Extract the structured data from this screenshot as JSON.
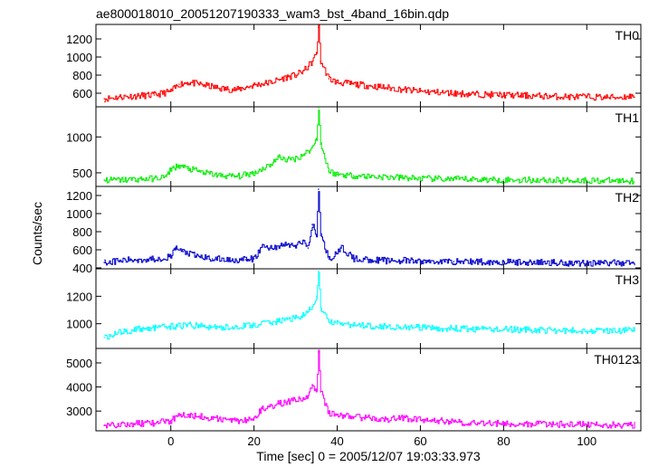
{
  "title": "ae800018010_20051207190333_wam3_bst_4band_16bin.qdp",
  "xlabel": "Time [sec] 0 = 2005/12/07 19:03:33.973",
  "ylabel": "Counts/sec",
  "chart_data": [
    {
      "type": "line",
      "name": "TH0",
      "color": "#ff0000",
      "ylim": [
        450,
        1360
      ],
      "yticks": [
        600,
        800,
        1000,
        1200
      ],
      "yticklabels": [
        "600",
        "800",
        "1000",
        "1200"
      ],
      "x": [
        -16,
        -12,
        -8,
        -4,
        0,
        2,
        4,
        8,
        12,
        16,
        20,
        24,
        28,
        30,
        32,
        34,
        35,
        35.5,
        36,
        38,
        40,
        44,
        48,
        52,
        56,
        60,
        64,
        68,
        72,
        76,
        80,
        84,
        88,
        92,
        96,
        100,
        104,
        108,
        111
      ],
      "values": [
        540,
        560,
        570,
        580,
        620,
        700,
        720,
        690,
        650,
        640,
        690,
        720,
        780,
        800,
        850,
        950,
        1050,
        1330,
        950,
        760,
        720,
        700,
        680,
        660,
        640,
        620,
        610,
        600,
        590,
        585,
        580,
        575,
        570,
        565,
        560,
        560,
        555,
        555,
        570
      ]
    },
    {
      "type": "line",
      "name": "TH1",
      "color": "#00ee00",
      "ylim": [
        310,
        1420
      ],
      "yticks": [
        500,
        1000
      ],
      "yticklabels": [
        "500",
        "1000"
      ],
      "x": [
        -16,
        -12,
        -8,
        -4,
        -1,
        0,
        2,
        4,
        8,
        12,
        16,
        20,
        24,
        26,
        28,
        30,
        32,
        34,
        35,
        35.5,
        36,
        38,
        40,
        44,
        48,
        52,
        56,
        60,
        64,
        68,
        72,
        76,
        80,
        84,
        88,
        92,
        96,
        100,
        104,
        108,
        111
      ],
      "values": [
        400,
        400,
        410,
        420,
        450,
        560,
        600,
        560,
        500,
        460,
        450,
        500,
        620,
        720,
        680,
        700,
        760,
        850,
        980,
        1410,
        900,
        520,
        480,
        460,
        450,
        440,
        430,
        420,
        415,
        410,
        410,
        405,
        400,
        400,
        400,
        395,
        395,
        395,
        390,
        390,
        390
      ]
    },
    {
      "type": "line",
      "name": "TH2",
      "color": "#0000cc",
      "ylim": [
        390,
        1300
      ],
      "yticks": [
        400,
        600,
        800,
        1000,
        1200
      ],
      "yticklabels": [
        "400",
        "600",
        "800",
        "1000",
        "1200"
      ],
      "x": [
        -16,
        -12,
        -8,
        -4,
        0,
        1,
        3,
        6,
        10,
        14,
        18,
        20,
        22,
        24,
        28,
        30,
        32,
        33,
        34,
        35,
        35.5,
        36,
        38,
        40,
        41,
        44,
        48,
        52,
        56,
        60,
        64,
        68,
        72,
        76,
        80,
        84,
        88,
        92,
        96,
        100,
        104,
        108,
        111
      ],
      "values": [
        460,
        480,
        490,
        500,
        520,
        620,
        580,
        530,
        500,
        490,
        490,
        500,
        640,
        620,
        660,
        640,
        700,
        620,
        880,
        760,
        1270,
        760,
        500,
        560,
        620,
        500,
        490,
        480,
        480,
        470,
        470,
        470,
        470,
        465,
        465,
        460,
        460,
        460,
        455,
        455,
        455,
        455,
        455
      ]
    },
    {
      "type": "line",
      "name": "TH3",
      "color": "#00ffff",
      "ylim": [
        820,
        1400
      ],
      "yticks": [
        1000,
        1200
      ],
      "yticklabels": [
        "1000",
        "1200"
      ],
      "x": [
        -16,
        -12,
        -8,
        -4,
        0,
        4,
        8,
        12,
        16,
        20,
        24,
        28,
        32,
        34,
        35,
        35.5,
        36,
        38,
        40,
        44,
        48,
        52,
        56,
        60,
        64,
        68,
        72,
        76,
        80,
        84,
        88,
        92,
        96,
        100,
        104,
        108,
        111
      ],
      "values": [
        900,
        940,
        960,
        970,
        980,
        990,
        980,
        970,
        980,
        990,
        1010,
        1030,
        1060,
        1120,
        1200,
        1380,
        1100,
        1020,
        1000,
        990,
        985,
        980,
        975,
        970,
        965,
        965,
        960,
        960,
        960,
        955,
        955,
        950,
        950,
        950,
        950,
        950,
        950
      ]
    },
    {
      "type": "line",
      "name": "TH0123",
      "color": "#ff00ff",
      "ylim": [
        2180,
        5600
      ],
      "yticks": [
        3000,
        4000,
        5000
      ],
      "yticklabels": [
        "3000",
        "4000",
        "5000"
      ],
      "x": [
        -16,
        -12,
        -8,
        -4,
        0,
        2,
        4,
        8,
        12,
        16,
        20,
        22,
        24,
        26,
        28,
        30,
        32,
        33,
        34,
        35,
        35.5,
        36,
        38,
        40,
        44,
        48,
        52,
        56,
        60,
        64,
        68,
        72,
        76,
        80,
        84,
        88,
        92,
        96,
        100,
        104,
        108,
        111
      ],
      "values": [
        2400,
        2450,
        2480,
        2500,
        2600,
        2900,
        2850,
        2750,
        2650,
        2600,
        2700,
        3100,
        3200,
        3300,
        3400,
        3450,
        3550,
        3600,
        4100,
        3800,
        5450,
        3800,
        2900,
        2850,
        2750,
        2700,
        2650,
        2700,
        2650,
        2600,
        2550,
        2500,
        2500,
        2480,
        2470,
        2460,
        2450,
        2440,
        2430,
        2420,
        2420,
        2420
      ]
    }
  ],
  "x_axis": {
    "xlim": [
      -18,
      113
    ],
    "ticks": [
      0,
      20,
      40,
      60,
      80,
      100
    ],
    "ticklabels": [
      "0",
      "20",
      "40",
      "60",
      "80",
      "100"
    ]
  }
}
